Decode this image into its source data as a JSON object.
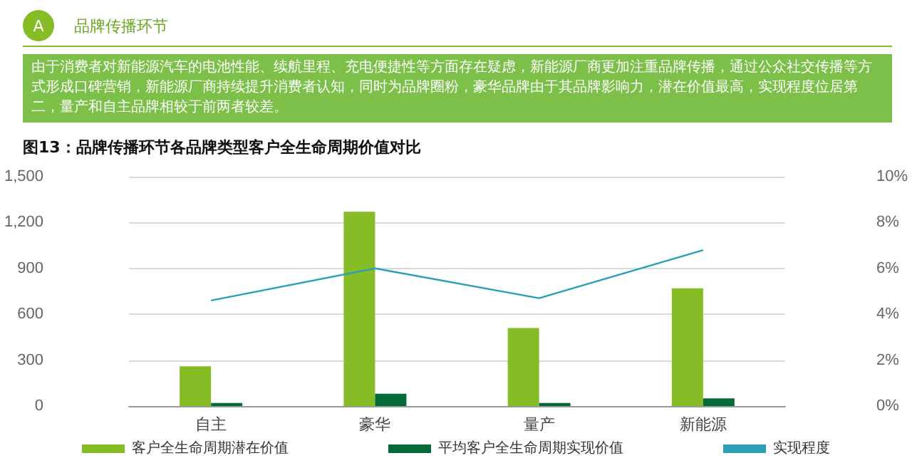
{
  "chart_data": {
    "type": "bar",
    "title": "图13：品牌传播环节各品牌类型客户全生命周期价值对比",
    "annotations": [
      "A",
      "品牌传播环节",
      "由于消费者对新能源汽车的电池性能、续航里程、充电便捷性等方面存在疑虑，新能源厂商更加注重品牌传播，通过公众社交传播等方式形成口碑营销，新能源厂商持续提升消费者认知，同时为品牌圈粉，豪华品牌由于其品牌影响力，潜在价值最高，实现程度位居第二，量产和自主品牌相较于前两者较差。"
    ],
    "categories": [
      "自主",
      "豪华",
      "量产",
      "新能源"
    ],
    "series": [
      {
        "name": "客户全生命周期潜在价值",
        "color": "#86bc25",
        "values": [
          260,
          1270,
          510,
          770
        ]
      },
      {
        "name": "平均客户全生命周期实现价值",
        "color": "#046a38",
        "values": [
          20,
          80,
          20,
          50
        ]
      },
      {
        "name": "实现程度",
        "type": "line",
        "axis": "y2",
        "color": "#2b9fb3",
        "values": [
          4.6,
          6.0,
          4.7,
          6.8
        ]
      }
    ],
    "ylim": [
      0,
      1500
    ],
    "yticks": [
      0,
      300,
      600,
      900,
      {
        "value": 1200,
        "label": "1,200"
      },
      {
        "value": 1500,
        "label": "1,500"
      }
    ],
    "y2lim": [
      0,
      10
    ],
    "y2ticks": [
      {
        "value": 0,
        "label": "0%"
      },
      {
        "value": 2,
        "label": "2%"
      },
      {
        "value": 4,
        "label": "4%"
      },
      {
        "value": 6,
        "label": "6%"
      },
      {
        "value": 8,
        "label": "8%"
      },
      {
        "value": 10,
        "label": "10%"
      }
    ],
    "grid": "y",
    "legend": "bottom",
    "marker": "none",
    "line_style": "solid"
  }
}
